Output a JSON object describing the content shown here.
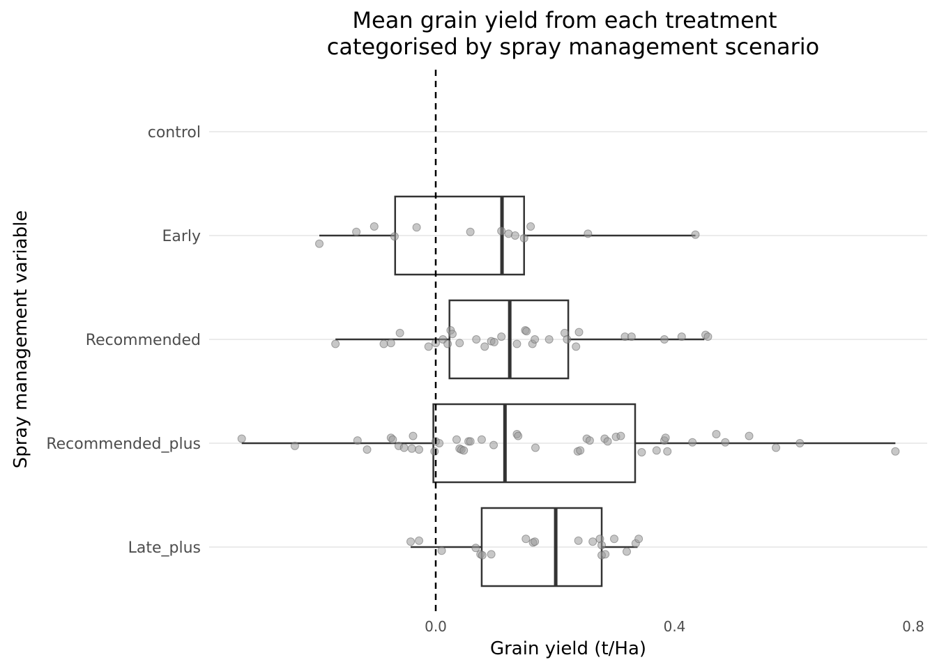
{
  "chart_data": {
    "type": "boxplot",
    "orientation": "horizontal",
    "title_lines": [
      "Mean grain yield from each treatment",
      "categorised by spray management scenario"
    ],
    "xlabel": "Grain yield (t/Ha)",
    "ylabel": "Spray management variable",
    "xlim": [
      -0.38,
      0.82
    ],
    "x_ticks": [
      0.0,
      0.4,
      0.8
    ],
    "x_tick_labels": [
      "0.0",
      "0.4",
      "0.8"
    ],
    "reference_line": {
      "x": 0.0,
      "style": "dashed"
    },
    "grid": "horizontal-major",
    "categories": [
      "control",
      "Early",
      "Recommended",
      "Recommended_plus",
      "Late_plus"
    ],
    "colors": {
      "box": "#333333",
      "point": "#999999",
      "grid": "#ebebeb",
      "refline": "#000000"
    },
    "boxes": [
      {
        "category": "control",
        "empty": true
      },
      {
        "category": "Early",
        "whisker_low": -0.195,
        "q1": -0.068,
        "median": 0.111,
        "q3": 0.148,
        "whisker_high": 0.435
      },
      {
        "category": "Recommended",
        "whisker_low": -0.168,
        "q1": 0.023,
        "median": 0.124,
        "q3": 0.222,
        "whisker_high": 0.45
      },
      {
        "category": "Recommended_plus",
        "whisker_low": -0.325,
        "q1": -0.004,
        "median": 0.116,
        "q3": 0.334,
        "whisker_high": 0.77
      },
      {
        "category": "Late_plus",
        "whisker_low": -0.042,
        "q1": 0.077,
        "median": 0.201,
        "q3": 0.278,
        "whisker_high": 0.338
      }
    ],
    "points": [
      {
        "category": "Early",
        "x": -0.195,
        "jitter": -0.09
      },
      {
        "category": "Early",
        "x": -0.133,
        "jitter": 0.04
      },
      {
        "category": "Early",
        "x": -0.103,
        "jitter": 0.1
      },
      {
        "category": "Early",
        "x": -0.069,
        "jitter": -0.01
      },
      {
        "category": "Early",
        "x": -0.032,
        "jitter": 0.09
      },
      {
        "category": "Early",
        "x": 0.058,
        "jitter": 0.04
      },
      {
        "category": "Early",
        "x": 0.11,
        "jitter": 0.05
      },
      {
        "category": "Early",
        "x": 0.122,
        "jitter": 0.02
      },
      {
        "category": "Early",
        "x": 0.133,
        "jitter": 0.0
      },
      {
        "category": "Early",
        "x": 0.148,
        "jitter": -0.03
      },
      {
        "category": "Early",
        "x": 0.159,
        "jitter": 0.1
      },
      {
        "category": "Early",
        "x": 0.255,
        "jitter": 0.02
      },
      {
        "category": "Early",
        "x": 0.435,
        "jitter": 0.01
      },
      {
        "category": "Recommended",
        "x": -0.168,
        "jitter": -0.05
      },
      {
        "category": "Recommended",
        "x": -0.087,
        "jitter": -0.05
      },
      {
        "category": "Recommended",
        "x": -0.075,
        "jitter": -0.04
      },
      {
        "category": "Recommended",
        "x": -0.06,
        "jitter": 0.07
      },
      {
        "category": "Recommended",
        "x": -0.012,
        "jitter": -0.08
      },
      {
        "category": "Recommended",
        "x": 0.0,
        "jitter": -0.04
      },
      {
        "category": "Recommended",
        "x": 0.012,
        "jitter": 0.0
      },
      {
        "category": "Recommended",
        "x": 0.02,
        "jitter": -0.05
      },
      {
        "category": "Recommended",
        "x": 0.025,
        "jitter": 0.1
      },
      {
        "category": "Recommended",
        "x": 0.028,
        "jitter": 0.06
      },
      {
        "category": "Recommended",
        "x": 0.04,
        "jitter": -0.04
      },
      {
        "category": "Recommended",
        "x": 0.068,
        "jitter": 0.0
      },
      {
        "category": "Recommended",
        "x": 0.082,
        "jitter": -0.08
      },
      {
        "category": "Recommended",
        "x": 0.093,
        "jitter": -0.02
      },
      {
        "category": "Recommended",
        "x": 0.098,
        "jitter": -0.03
      },
      {
        "category": "Recommended",
        "x": 0.11,
        "jitter": 0.03
      },
      {
        "category": "Recommended",
        "x": 0.136,
        "jitter": -0.05
      },
      {
        "category": "Recommended",
        "x": 0.15,
        "jitter": 0.1
      },
      {
        "category": "Recommended",
        "x": 0.152,
        "jitter": 0.09
      },
      {
        "category": "Recommended",
        "x": 0.162,
        "jitter": -0.05
      },
      {
        "category": "Recommended",
        "x": 0.166,
        "jitter": 0.0
      },
      {
        "category": "Recommended",
        "x": 0.19,
        "jitter": 0.0
      },
      {
        "category": "Recommended",
        "x": 0.216,
        "jitter": 0.07
      },
      {
        "category": "Recommended",
        "x": 0.22,
        "jitter": 0.0
      },
      {
        "category": "Recommended",
        "x": 0.235,
        "jitter": -0.08
      },
      {
        "category": "Recommended",
        "x": 0.24,
        "jitter": 0.08
      },
      {
        "category": "Recommended",
        "x": 0.317,
        "jitter": 0.03
      },
      {
        "category": "Recommended",
        "x": 0.328,
        "jitter": 0.03
      },
      {
        "category": "Recommended",
        "x": 0.383,
        "jitter": 0.0
      },
      {
        "category": "Recommended",
        "x": 0.412,
        "jitter": 0.03
      },
      {
        "category": "Recommended",
        "x": 0.452,
        "jitter": 0.05
      },
      {
        "category": "Recommended",
        "x": 0.456,
        "jitter": 0.03
      },
      {
        "category": "Recommended_plus",
        "x": -0.325,
        "jitter": 0.05
      },
      {
        "category": "Recommended_plus",
        "x": -0.236,
        "jitter": -0.03
      },
      {
        "category": "Recommended_plus",
        "x": -0.131,
        "jitter": 0.03
      },
      {
        "category": "Recommended_plus",
        "x": -0.115,
        "jitter": -0.07
      },
      {
        "category": "Recommended_plus",
        "x": -0.075,
        "jitter": 0.06
      },
      {
        "category": "Recommended_plus",
        "x": -0.072,
        "jitter": 0.04
      },
      {
        "category": "Recommended_plus",
        "x": -0.062,
        "jitter": -0.03
      },
      {
        "category": "Recommended_plus",
        "x": -0.053,
        "jitter": -0.05
      },
      {
        "category": "Recommended_plus",
        "x": -0.04,
        "jitter": -0.06
      },
      {
        "category": "Recommended_plus",
        "x": -0.038,
        "jitter": 0.08
      },
      {
        "category": "Recommended_plus",
        "x": -0.028,
        "jitter": -0.07
      },
      {
        "category": "Recommended_plus",
        "x": -0.002,
        "jitter": -0.09
      },
      {
        "category": "Recommended_plus",
        "x": 0.0,
        "jitter": 0.02
      },
      {
        "category": "Recommended_plus",
        "x": 0.006,
        "jitter": 0.0
      },
      {
        "category": "Recommended_plus",
        "x": 0.035,
        "jitter": 0.04
      },
      {
        "category": "Recommended_plus",
        "x": 0.04,
        "jitter": -0.06
      },
      {
        "category": "Recommended_plus",
        "x": 0.043,
        "jitter": -0.07
      },
      {
        "category": "Recommended_plus",
        "x": 0.047,
        "jitter": -0.08
      },
      {
        "category": "Recommended_plus",
        "x": 0.055,
        "jitter": 0.02
      },
      {
        "category": "Recommended_plus",
        "x": 0.058,
        "jitter": 0.02
      },
      {
        "category": "Recommended_plus",
        "x": 0.077,
        "jitter": 0.04
      },
      {
        "category": "Recommended_plus",
        "x": 0.097,
        "jitter": -0.02
      },
      {
        "category": "Recommended_plus",
        "x": 0.136,
        "jitter": 0.1
      },
      {
        "category": "Recommended_plus",
        "x": 0.138,
        "jitter": 0.08
      },
      {
        "category": "Recommended_plus",
        "x": 0.167,
        "jitter": -0.05
      },
      {
        "category": "Recommended_plus",
        "x": 0.238,
        "jitter": -0.09
      },
      {
        "category": "Recommended_plus",
        "x": 0.242,
        "jitter": -0.08
      },
      {
        "category": "Recommended_plus",
        "x": 0.253,
        "jitter": 0.05
      },
      {
        "category": "Recommended_plus",
        "x": 0.258,
        "jitter": 0.03
      },
      {
        "category": "Recommended_plus",
        "x": 0.283,
        "jitter": 0.05
      },
      {
        "category": "Recommended_plus",
        "x": 0.288,
        "jitter": 0.02
      },
      {
        "category": "Recommended_plus",
        "x": 0.302,
        "jitter": 0.07
      },
      {
        "category": "Recommended_plus",
        "x": 0.31,
        "jitter": 0.08
      },
      {
        "category": "Recommended_plus",
        "x": 0.345,
        "jitter": -0.1
      },
      {
        "category": "Recommended_plus",
        "x": 0.37,
        "jitter": -0.08
      },
      {
        "category": "Recommended_plus",
        "x": 0.383,
        "jitter": 0.03
      },
      {
        "category": "Recommended_plus",
        "x": 0.385,
        "jitter": 0.06
      },
      {
        "category": "Recommended_plus",
        "x": 0.388,
        "jitter": -0.09
      },
      {
        "category": "Recommended_plus",
        "x": 0.43,
        "jitter": 0.01
      },
      {
        "category": "Recommended_plus",
        "x": 0.47,
        "jitter": 0.1
      },
      {
        "category": "Recommended_plus",
        "x": 0.485,
        "jitter": 0.01
      },
      {
        "category": "Recommended_plus",
        "x": 0.525,
        "jitter": 0.08
      },
      {
        "category": "Recommended_plus",
        "x": 0.57,
        "jitter": -0.05
      },
      {
        "category": "Recommended_plus",
        "x": 0.61,
        "jitter": 0.0
      },
      {
        "category": "Recommended_plus",
        "x": 0.77,
        "jitter": -0.09
      },
      {
        "category": "Late_plus",
        "x": -0.042,
        "jitter": 0.06
      },
      {
        "category": "Late_plus",
        "x": -0.028,
        "jitter": 0.07
      },
      {
        "category": "Late_plus",
        "x": 0.01,
        "jitter": -0.04
      },
      {
        "category": "Late_plus",
        "x": 0.067,
        "jitter": -0.01
      },
      {
        "category": "Late_plus",
        "x": 0.075,
        "jitter": -0.08
      },
      {
        "category": "Late_plus",
        "x": 0.078,
        "jitter": -0.09
      },
      {
        "category": "Late_plus",
        "x": 0.093,
        "jitter": -0.08
      },
      {
        "category": "Late_plus",
        "x": 0.151,
        "jitter": 0.09
      },
      {
        "category": "Late_plus",
        "x": 0.163,
        "jitter": 0.05
      },
      {
        "category": "Late_plus",
        "x": 0.166,
        "jitter": 0.06
      },
      {
        "category": "Late_plus",
        "x": 0.239,
        "jitter": 0.07
      },
      {
        "category": "Late_plus",
        "x": 0.263,
        "jitter": 0.06
      },
      {
        "category": "Late_plus",
        "x": 0.275,
        "jitter": 0.09
      },
      {
        "category": "Late_plus",
        "x": 0.278,
        "jitter": 0.02
      },
      {
        "category": "Late_plus",
        "x": 0.278,
        "jitter": -0.09
      },
      {
        "category": "Late_plus",
        "x": 0.284,
        "jitter": -0.08
      },
      {
        "category": "Late_plus",
        "x": 0.299,
        "jitter": 0.09
      },
      {
        "category": "Late_plus",
        "x": 0.32,
        "jitter": -0.05
      },
      {
        "category": "Late_plus",
        "x": 0.335,
        "jitter": 0.04
      },
      {
        "category": "Late_plus",
        "x": 0.34,
        "jitter": 0.09
      }
    ]
  }
}
